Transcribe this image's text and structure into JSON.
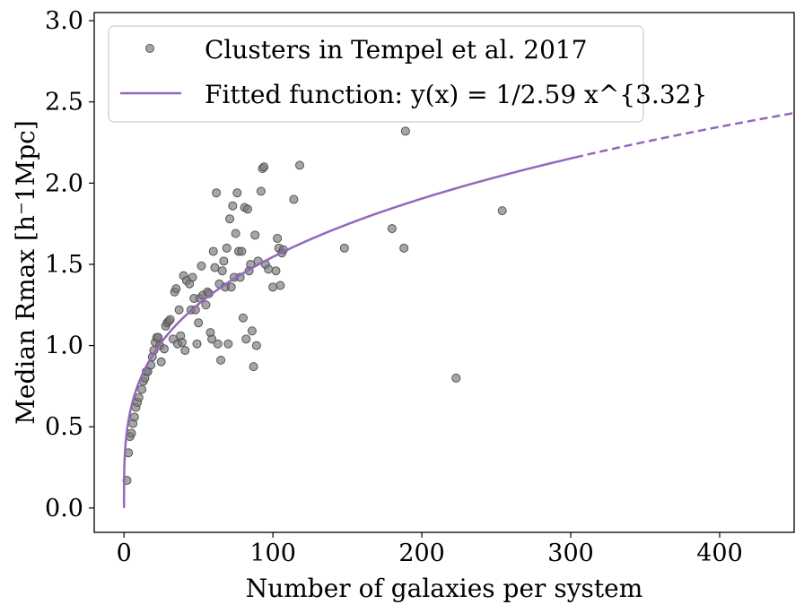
{
  "chart_data": {
    "type": "scatter",
    "title": "",
    "xlabel": "Number of galaxies per system",
    "ylabel": "Median Rmax [h⁻1Mpc]",
    "xlim": [
      -20,
      450
    ],
    "ylim": [
      -0.15,
      3.05
    ],
    "xticks": [
      "0",
      "100",
      "200",
      "300",
      "400"
    ],
    "yticks": [
      "0.0",
      "0.5",
      "1.0",
      "1.5",
      "2.0",
      "2.5",
      "3.0"
    ],
    "legend_position": "top-left",
    "colors": {
      "points": "#777777",
      "fit": "#9467bd"
    },
    "series": [
      {
        "name": "Clusters in Tempel et al. 2017",
        "kind": "scatter",
        "x": [
          2,
          3,
          4,
          5,
          6,
          7,
          8,
          9,
          10,
          12,
          13,
          14,
          15,
          16,
          18,
          19,
          20,
          21,
          22,
          23,
          24,
          25,
          27,
          28,
          29,
          30,
          31,
          33,
          34,
          35,
          36,
          37,
          38,
          39,
          40,
          41,
          42,
          44,
          45,
          46,
          47,
          48,
          49,
          50,
          51,
          52,
          53,
          55,
          56,
          57,
          58,
          59,
          60,
          61,
          62,
          63,
          64,
          65,
          66,
          67,
          68,
          69,
          70,
          71,
          72,
          73,
          74,
          75,
          76,
          77,
          78,
          79,
          80,
          81,
          82,
          83,
          84,
          85,
          86,
          87,
          88,
          89,
          90,
          92,
          93,
          94,
          95,
          97,
          100,
          102,
          103,
          104,
          105,
          106,
          107,
          114,
          118,
          148,
          180,
          188,
          189,
          223,
          254
        ],
        "y": [
          0.17,
          0.34,
          0.44,
          0.46,
          0.52,
          0.56,
          0.62,
          0.65,
          0.68,
          0.73,
          0.78,
          0.8,
          0.84,
          0.84,
          0.88,
          0.93,
          0.97,
          1.02,
          1.05,
          1.05,
          1.0,
          0.9,
          0.98,
          1.12,
          1.14,
          1.15,
          1.16,
          1.04,
          1.33,
          1.35,
          1.01,
          1.22,
          1.06,
          1.02,
          1.43,
          0.97,
          1.4,
          1.38,
          1.22,
          1.42,
          1.29,
          1.22,
          1.01,
          1.14,
          1.29,
          1.49,
          1.31,
          1.25,
          1.33,
          1.32,
          1.08,
          1.04,
          1.58,
          1.48,
          1.94,
          1.01,
          1.38,
          0.91,
          1.46,
          1.52,
          1.36,
          1.6,
          1.01,
          1.78,
          1.36,
          1.86,
          1.42,
          1.69,
          1.94,
          1.58,
          1.42,
          1.58,
          1.17,
          1.85,
          1.04,
          1.84,
          1.46,
          1.5,
          1.09,
          0.87,
          1.68,
          1.0,
          1.52,
          1.95,
          2.09,
          2.1,
          1.5,
          1.47,
          1.36,
          1.46,
          1.66,
          1.6,
          1.37,
          1.57,
          1.59,
          1.9,
          2.11,
          1.6,
          1.72,
          1.6,
          2.32,
          0.8,
          1.83
        ]
      },
      {
        "name": "Fitted function: y(x) = 1/2.59 x^{3.32}",
        "kind": "line",
        "fit": {
          "a": 2.59,
          "b": 3.32,
          "x_start": 0,
          "solid_until": 303,
          "x_end": 450
        }
      }
    ]
  }
}
